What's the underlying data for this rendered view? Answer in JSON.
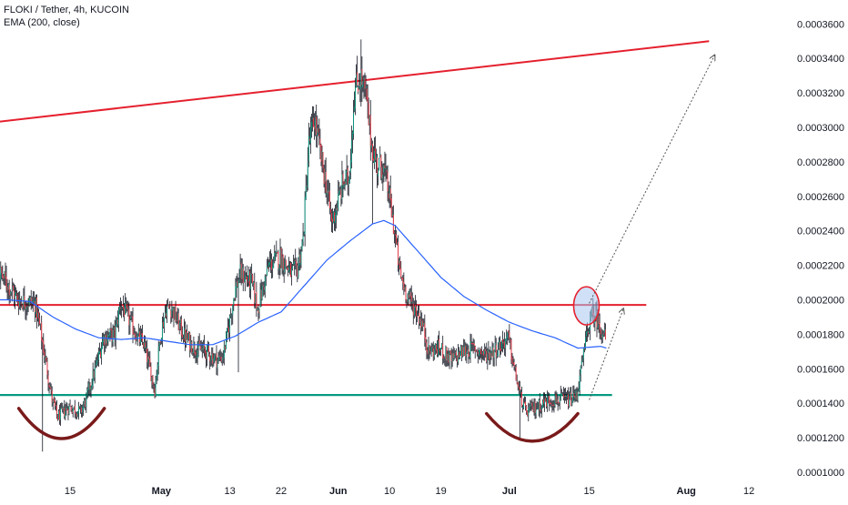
{
  "legend": {
    "symbol_line": "FLOKI / Tether, 4h, KUCOIN",
    "indicator_line": "EMA (200, close)"
  },
  "chart_data": {
    "type": "candlestick",
    "ylim": [
      9.95e-05,
      0.000362
    ],
    "y_ticks": [
      "0.0003600",
      "0.0003400",
      "0.0003200",
      "0.0003000",
      "0.0002800",
      "0.0002600",
      "0.0002400",
      "0.0002200",
      "0.0002000",
      "0.0001800",
      "0.0001600",
      "0.0001400",
      "0.0001200",
      "0.0001000"
    ],
    "y_tick_values": [
      0.00036,
      0.00034,
      0.00032,
      0.0003,
      0.00028,
      0.00026,
      0.00024,
      0.00022,
      0.0002,
      0.00018,
      0.00016,
      0.00014,
      0.00012,
      0.0001
    ],
    "x_ticks": [
      {
        "label": "15",
        "day": 15,
        "bold": false
      },
      {
        "label": "May",
        "day": 31,
        "bold": true
      },
      {
        "label": "13",
        "day": 43,
        "bold": false
      },
      {
        "label": "22",
        "day": 52,
        "bold": false
      },
      {
        "label": "Jun",
        "day": 62,
        "bold": true
      },
      {
        "label": "10",
        "day": 71,
        "bold": false
      },
      {
        "label": "19",
        "day": 80,
        "bold": false
      },
      {
        "label": "Jul",
        "day": 92,
        "bold": true
      },
      {
        "label": "15",
        "day": 106,
        "bold": false
      },
      {
        "label": "Aug",
        "day": 123,
        "bold": true
      },
      {
        "label": "12",
        "day": 134,
        "bold": false
      }
    ],
    "price_anchors": [
      [
        0,
        0.000205
      ],
      [
        3,
        0.000215
      ],
      [
        6,
        0.0002
      ],
      [
        9,
        0.000198
      ],
      [
        10,
        0.000182
      ],
      [
        12,
        0.000142
      ],
      [
        13,
        0.000132
      ],
      [
        15,
        0.000138
      ],
      [
        17,
        0.000135
      ],
      [
        18,
        0.000142
      ],
      [
        20,
        0.000165
      ],
      [
        21,
        0.000178
      ],
      [
        23,
        0.00018
      ],
      [
        24,
        0.000198
      ],
      [
        25,
        0.000192
      ],
      [
        27,
        0.000178
      ],
      [
        28,
        0.000175
      ],
      [
        29,
        0.000162
      ],
      [
        30,
        0.000148
      ],
      [
        31,
        0.00018
      ],
      [
        32,
        0.000195
      ],
      [
        33,
        0.000195
      ],
      [
        35,
        0.00018
      ],
      [
        37,
        0.000172
      ],
      [
        39,
        0.00017
      ],
      [
        41,
        0.000165
      ],
      [
        42,
        0.000168
      ],
      [
        43,
        0.000185
      ],
      [
        44,
        0.000205
      ],
      [
        45,
        0.000215
      ],
      [
        47,
        0.00021
      ],
      [
        48,
        0.000195
      ],
      [
        50,
        0.00022
      ],
      [
        52,
        0.000225
      ],
      [
        54,
        0.000215
      ],
      [
        55,
        0.000218
      ],
      [
        56,
        0.000235
      ],
      [
        57,
        0.00029
      ],
      [
        58,
        0.000305
      ],
      [
        59,
        0.000285
      ],
      [
        60,
        0.000268
      ],
      [
        61,
        0.000245
      ],
      [
        62,
        0.000255
      ],
      [
        63,
        0.000268
      ],
      [
        64,
        0.00027
      ],
      [
        65,
        0.00032
      ],
      [
        66,
        0.00033
      ],
      [
        67,
        0.000318
      ],
      [
        68,
        0.00029
      ],
      [
        69,
        0.000278
      ],
      [
        70,
        0.000278
      ],
      [
        71,
        0.000262
      ],
      [
        72,
        0.00024
      ],
      [
        73,
        0.000215
      ],
      [
        74,
        0.000205
      ],
      [
        75,
        0.000198
      ],
      [
        76,
        0.000193
      ],
      [
        77,
        0.000185
      ],
      [
        78,
        0.00017
      ],
      [
        80,
        0.000172
      ],
      [
        82,
        0.000165
      ],
      [
        84,
        0.00017
      ],
      [
        86,
        0.000172
      ],
      [
        88,
        0.000168
      ],
      [
        90,
        0.000172
      ],
      [
        92,
        0.000178
      ],
      [
        93,
        0.00016
      ],
      [
        94,
        0.000145
      ],
      [
        95,
        0.000135
      ],
      [
        97,
        0.000138
      ],
      [
        99,
        0.000142
      ],
      [
        101,
        0.000142
      ],
      [
        103,
        0.000142
      ],
      [
        104,
        0.000145
      ],
      [
        105,
        0.000165
      ],
      [
        106,
        0.000185
      ],
      [
        107,
        0.000192
      ],
      [
        108,
        0.000185
      ],
      [
        109,
        0.000178
      ]
    ],
    "ema_anchors": [
      [
        0,
        0.0002
      ],
      [
        4,
        0.0002
      ],
      [
        8,
        0.000199
      ],
      [
        12,
        0.00019
      ],
      [
        16,
        0.000183
      ],
      [
        20,
        0.000178
      ],
      [
        24,
        0.000177
      ],
      [
        28,
        0.000178
      ],
      [
        32,
        0.000176
      ],
      [
        36,
        0.000174
      ],
      [
        40,
        0.000174
      ],
      [
        44,
        0.000179
      ],
      [
        48,
        0.000187
      ],
      [
        52,
        0.000193
      ],
      [
        56,
        0.000208
      ],
      [
        60,
        0.000223
      ],
      [
        64,
        0.000234
      ],
      [
        68,
        0.000244
      ],
      [
        70,
        0.000246
      ],
      [
        72,
        0.000243
      ],
      [
        76,
        0.000228
      ],
      [
        80,
        0.000213
      ],
      [
        84,
        0.000202
      ],
      [
        88,
        0.000194
      ],
      [
        92,
        0.000187
      ],
      [
        96,
        0.000182
      ],
      [
        100,
        0.000178
      ],
      [
        104,
        0.000172
      ],
      [
        108,
        0.000173
      ],
      [
        109,
        0.000172
      ]
    ],
    "annotations": {
      "resistance_trendline": {
        "p1": [
          -1,
          0.000302
        ],
        "p2": [
          127,
          0.00035
        ],
        "color": "#e5202e"
      },
      "resistance_level": {
        "y": 0.000197,
        "x1": -1,
        "x2": 116,
        "color": "#e5202e"
      },
      "support_level": {
        "y": 0.0001448,
        "x1": -1,
        "x2": 110,
        "color": "#089981"
      },
      "circle": {
        "x": 105.5,
        "y": 0.0001965,
        "color": "#e5202e",
        "fill": "#a9c7f0"
      },
      "projection_arrow_1": {
        "from": [
          106,
          0.000198
        ],
        "to": [
          128,
          0.000342
        ],
        "color": "#555555"
      },
      "projection_arrow_2": {
        "from": [
          106,
          0.000142
        ],
        "to": [
          112,
          0.000195
        ],
        "color": "#555555"
      },
      "arc_1": {
        "from": [
          6,
          0.000137
        ],
        "to": [
          21,
          0.000137
        ],
        "depth": 1.75e-05,
        "color": "#7a1a1a"
      },
      "arc_2": {
        "from": [
          88,
          0.000134
        ],
        "to": [
          104,
          0.000134
        ],
        "depth": 1.6e-05,
        "color": "#7a1a1a"
      }
    },
    "colors": {
      "up": "#089981",
      "down": "#f23645",
      "ema": "#2962ff",
      "wick": "#131722"
    },
    "grid": false
  }
}
